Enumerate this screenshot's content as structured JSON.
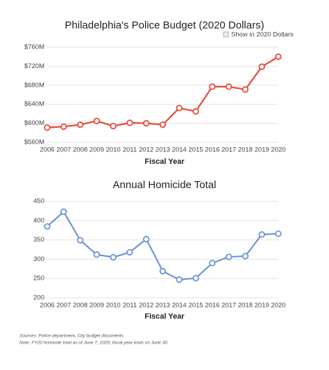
{
  "chart_data": [
    {
      "type": "line",
      "title": "Philadelphia's Police Budget (2020 Dollars)",
      "toggle_label": "Show in 2020 Dollars",
      "x_label": "Fiscal Year",
      "categories": [
        "2006",
        "2007",
        "2008",
        "2009",
        "2010",
        "2011",
        "2012",
        "2013",
        "2014",
        "2015",
        "2016",
        "2017",
        "2018",
        "2019",
        "2020"
      ],
      "series": [
        {
          "color": "#e8483a",
          "values": [
            591,
            593,
            597,
            605,
            594,
            601,
            600,
            597,
            632,
            625,
            677,
            677,
            671,
            719,
            740
          ]
        }
      ],
      "ylim": [
        560,
        760
      ],
      "yticks": [
        {
          "value": 560,
          "label": "$560M"
        },
        {
          "value": 600,
          "label": "$600M"
        },
        {
          "value": 640,
          "label": "$640M"
        },
        {
          "value": 680,
          "label": "$680M"
        },
        {
          "value": 720,
          "label": "$720M"
        },
        {
          "value": 760,
          "label": "$760M"
        }
      ],
      "grid": true
    },
    {
      "type": "line",
      "title": "Annual Homicide Total",
      "x_label": "Fiscal Year",
      "categories": [
        "2006",
        "2007",
        "2008",
        "2009",
        "2010",
        "2011",
        "2012",
        "2013",
        "2014",
        "2015",
        "2016",
        "2017",
        "2018",
        "2019",
        "2020"
      ],
      "series": [
        {
          "color": "#6e93d8",
          "values": [
            385,
            423,
            349,
            312,
            305,
            318,
            352,
            269,
            247,
            251,
            290,
            306,
            308,
            364,
            366
          ]
        }
      ],
      "ylim": [
        200,
        450
      ],
      "yticks": [
        200,
        250,
        300,
        350,
        400,
        450
      ],
      "grid": true
    }
  ],
  "notes": [
    "Sources: Police department, City budget documents",
    "Note: FY20 homicide total as of June 7, 2020; fiscal year ends on June 30."
  ]
}
